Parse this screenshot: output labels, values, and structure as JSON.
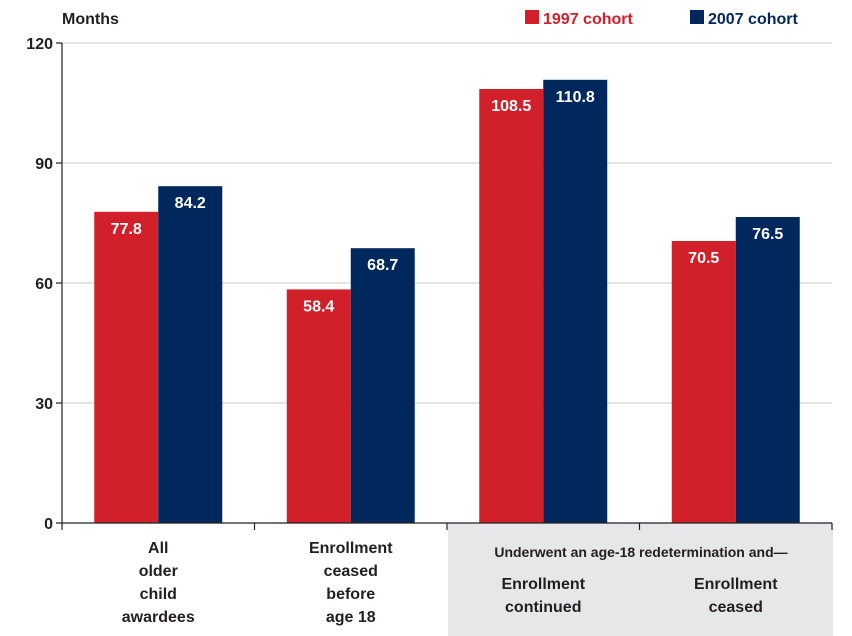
{
  "chart_data": {
    "type": "bar",
    "ylabel": "Months",
    "ylim": [
      0,
      120
    ],
    "yticks": [
      0,
      30,
      60,
      90,
      120
    ],
    "grid": true,
    "legend_position": "top-right",
    "categories": [
      [
        "All",
        "older",
        "child",
        "awardees"
      ],
      [
        "Enrollment",
        "ceased",
        "before",
        "age 18"
      ],
      [
        "Enrollment",
        "continued"
      ],
      [
        "Enrollment",
        "ceased"
      ]
    ],
    "group_annotation": "Underwent an age-18 redetermination and—",
    "series": [
      {
        "name": "1997 cohort",
        "color": "#d1202a",
        "values": [
          77.8,
          58.4,
          108.5,
          70.5
        ],
        "labels": [
          "77.8",
          "58.4",
          "108.5",
          "70.5"
        ]
      },
      {
        "name": "2007 cohort",
        "color": "#00285c",
        "values": [
          84.2,
          68.7,
          110.8,
          76.5
        ],
        "labels": [
          "84.2",
          "68.7",
          "110.8",
          "76.5"
        ]
      }
    ],
    "colors": {
      "grid": "#c8c8c8",
      "axis": "#231f20",
      "group_band": "#e6e7e8"
    }
  }
}
